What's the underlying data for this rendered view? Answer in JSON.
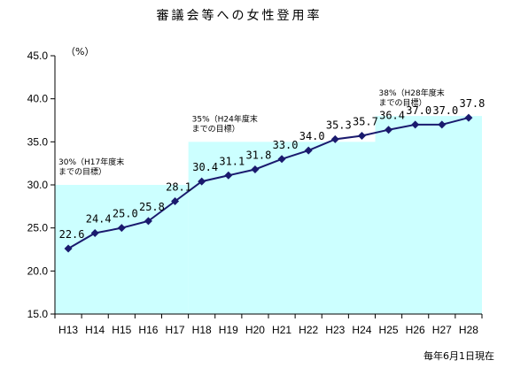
{
  "chart_data": {
    "type": "line",
    "title": "審議会等への女性登用率",
    "unit_label": "（%）",
    "footnote": "毎年6月1日現在",
    "categories": [
      "H13",
      "H14",
      "H15",
      "H16",
      "H17",
      "H18",
      "H19",
      "H20",
      "H21",
      "H22",
      "H23",
      "H24",
      "H25",
      "H26",
      "H27",
      "H28"
    ],
    "values": [
      22.6,
      24.4,
      25.0,
      25.8,
      28.1,
      30.4,
      31.1,
      31.8,
      33.0,
      34.0,
      35.3,
      35.7,
      36.4,
      37.0,
      37.0,
      37.8
    ],
    "data_labels": [
      "22.6",
      "24.4",
      "25.0",
      "25.8",
      "28.1",
      "30.4",
      "31.1",
      "31.8",
      "33.0",
      "34.0",
      "35.3",
      "35.7",
      "36.4",
      "37.0",
      "37.0",
      "37.8"
    ],
    "ylim": [
      15,
      45
    ],
    "yticks": [
      15,
      20,
      25,
      30,
      35,
      40,
      45
    ],
    "ytick_labels": [
      "15.0",
      "20.0",
      "25.0",
      "30.0",
      "35.0",
      "40.0",
      "45.0"
    ],
    "targets": [
      {
        "value": 30,
        "from": "H13",
        "to": "H17",
        "label_line1": "30%（H17年度末",
        "label_line2": "までの目標）"
      },
      {
        "value": 35,
        "from": "H18",
        "to": "H24",
        "label_line1": "35%（H24年度末",
        "label_line2": "までの目標）"
      },
      {
        "value": 38,
        "from": "H25",
        "to": "H28",
        "label_line1": "38%（H28年度末",
        "label_line2": "までの目標）"
      }
    ],
    "colors": {
      "line": "#1a1a6e",
      "marker": "#1a1a6e",
      "target_fill": "#ccffff",
      "axis": "#000000"
    }
  }
}
